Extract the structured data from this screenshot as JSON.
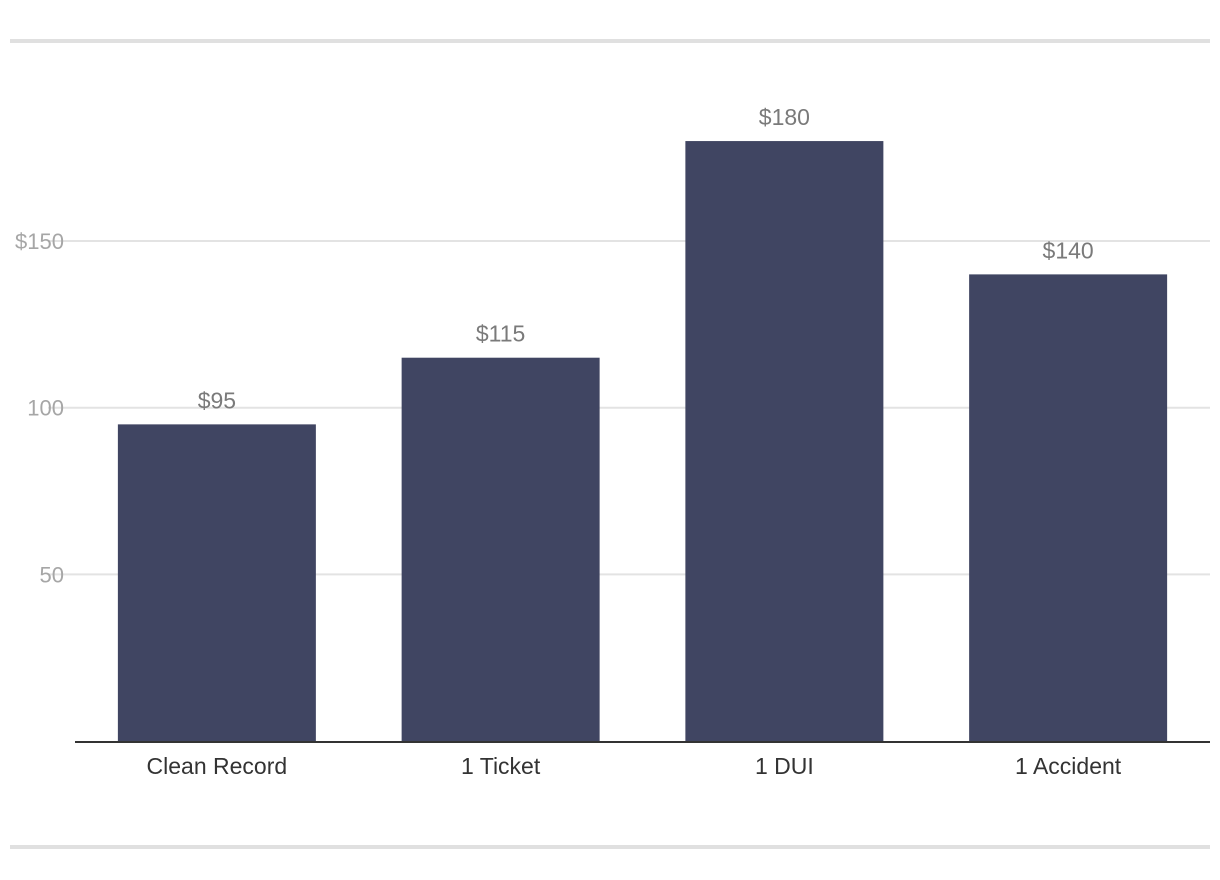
{
  "chart_data": {
    "type": "bar",
    "categories": [
      "Clean Record",
      "1 Ticket",
      "1 DUI",
      "1 Accident"
    ],
    "values": [
      95,
      115,
      180,
      140
    ],
    "data_labels": [
      "$95",
      "$115",
      "$180",
      "$140"
    ],
    "y_ticks": [
      {
        "value": 50,
        "label": "50"
      },
      {
        "value": 100,
        "label": "100"
      },
      {
        "value": 150,
        "label": "$150"
      }
    ],
    "ylim": [
      0,
      200
    ],
    "grid": true,
    "legend": "none",
    "colors": {
      "bar": "#404562",
      "grid": "#e3e3e3",
      "axis": "#333333"
    }
  }
}
